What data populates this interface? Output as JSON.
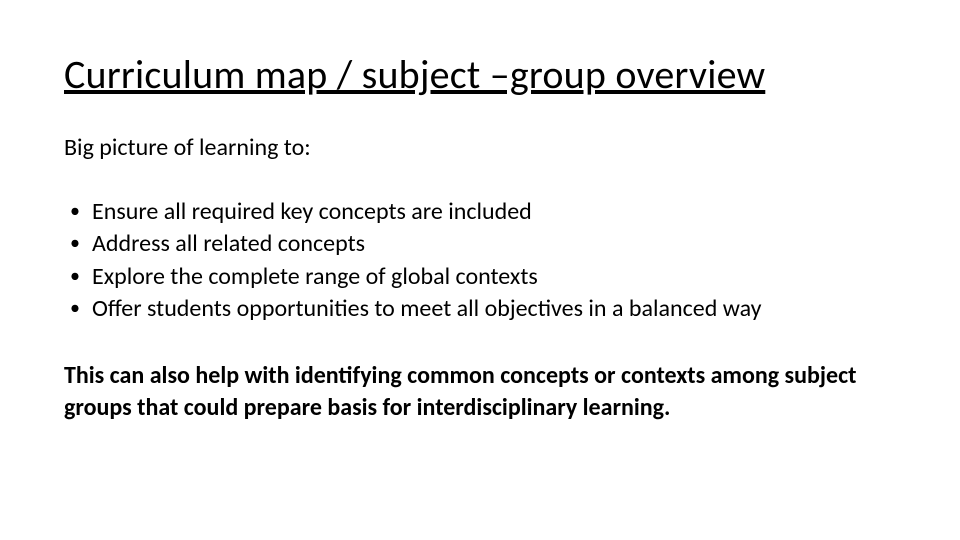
{
  "slide": {
    "type": "document",
    "background_color": "#ffffff",
    "text_color": "#000000",
    "title": {
      "text": "Curriculum map / subject –group overview",
      "fontsize": 40,
      "underline": true,
      "weight": 400
    },
    "subheading": {
      "text": "Big picture of learning to:",
      "fontsize": 24,
      "weight": 400
    },
    "bullets": {
      "fontsize": 24,
      "marker": "•",
      "items": [
        "Ensure all required key concepts are included",
        "Address all related concepts",
        "Explore the complete range of global contexts",
        "Offer students opportunities to meet all objectives in a balanced way"
      ]
    },
    "closing": {
      "text": "This can also help with identifying common concepts or contexts among subject groups that could prepare basis for interdisciplinary learning.",
      "fontsize": 24,
      "weight": 700
    }
  }
}
